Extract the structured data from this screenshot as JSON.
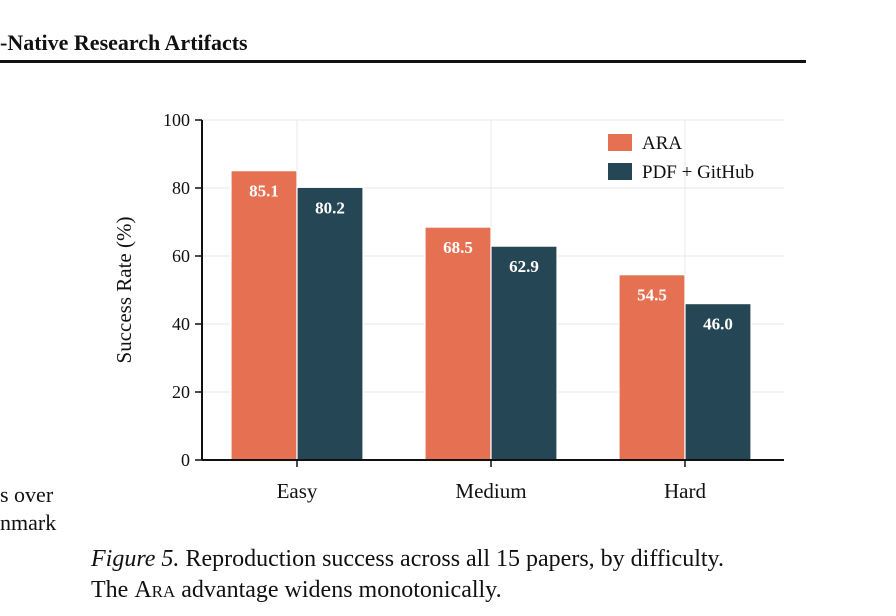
{
  "header": {
    "running_title": "-Native Research Artifacts"
  },
  "left_column_fragment": {
    "line1": "s over",
    "line2": "nmark"
  },
  "caption": {
    "figure_label": "Figure 5.",
    "line1_text": " Reproduction success across all 15 papers, by difficulty.",
    "line2_prefix": "The ",
    "line2_smallcaps": "Ara",
    "line2_suffix": " advantage widens monotonically."
  },
  "chart_data": {
    "type": "bar",
    "categories": [
      "Easy",
      "Medium",
      "Hard"
    ],
    "series": [
      {
        "name": "ARA",
        "values": [
          85.1,
          68.5,
          54.5
        ],
        "color": "#e57152"
      },
      {
        "name": "PDF + GitHub",
        "values": [
          80.2,
          62.9,
          46.0
        ],
        "color": "#254654"
      }
    ],
    "value_labels": [
      "85.1",
      "80.2",
      "68.5",
      "62.9",
      "54.5",
      "46.0"
    ],
    "title": "",
    "xlabel": "",
    "ylabel": "Success Rate (%)",
    "ylim": [
      0,
      100
    ],
    "yticks": [
      "0",
      "20",
      "40",
      "60",
      "80",
      "100"
    ],
    "grid": true,
    "legend_position": "top-right"
  }
}
